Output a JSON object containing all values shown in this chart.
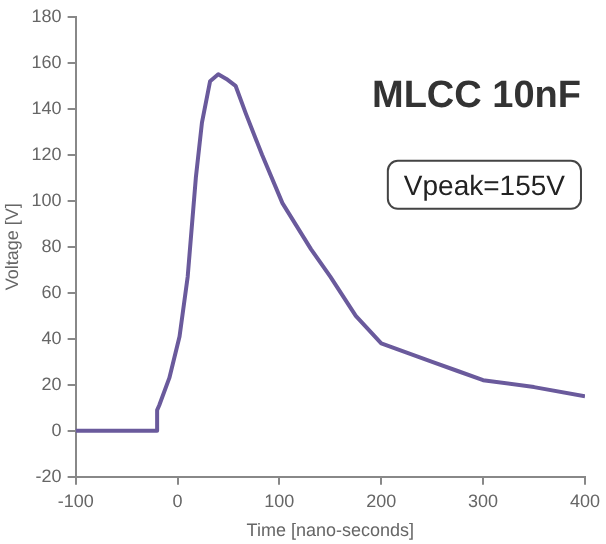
{
  "chart_data": {
    "type": "line",
    "xlabel": "Time [nano-seconds]",
    "ylabel": "Voltage [V]",
    "annotations": [
      "MLCC 10nF",
      "Vpeak=155V"
    ],
    "x": [
      -100,
      -60,
      -21,
      -20,
      -18,
      -8,
      2,
      10,
      18,
      24,
      32,
      40,
      48,
      57,
      67,
      83,
      103,
      131,
      150,
      175,
      200,
      225,
      250,
      275,
      300,
      350,
      400
    ],
    "series": [
      {
        "color": "#6a5a9c",
        "values": [
          0,
          0,
          0,
          9,
          11,
          23,
          41,
          67,
          110,
          134,
          152,
          155,
          153,
          150,
          138,
          120,
          99,
          79,
          67,
          50,
          38,
          34,
          30,
          26,
          22,
          19,
          15
        ]
      }
    ],
    "xlim": [
      -100,
      400
    ],
    "xticks": [
      -100,
      0,
      100,
      200,
      300,
      400
    ],
    "ylim": [
      -20,
      180
    ],
    "yticks": [
      -20,
      0,
      20,
      40,
      60,
      80,
      100,
      120,
      140,
      160,
      180
    ],
    "grid": false,
    "legend": false,
    "marker": "none",
    "line_style": "solid"
  }
}
